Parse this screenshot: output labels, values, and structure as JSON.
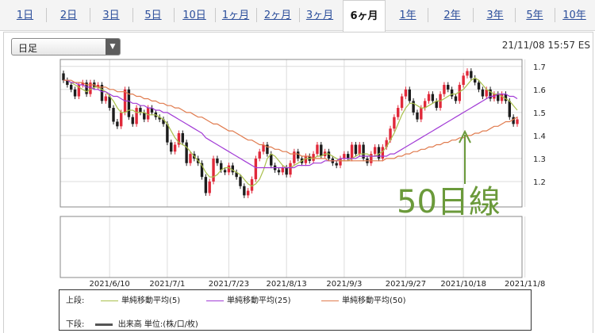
{
  "tabs": [
    {
      "label": "1日"
    },
    {
      "label": "2日"
    },
    {
      "label": "3日"
    },
    {
      "label": "5日"
    },
    {
      "label": "10日"
    },
    {
      "label": "1ヶ月"
    },
    {
      "label": "2ヶ月"
    },
    {
      "label": "3ヶ月"
    },
    {
      "label": "6ヶ月",
      "active": true
    },
    {
      "label": "1年"
    },
    {
      "label": "2年"
    },
    {
      "label": "3年"
    },
    {
      "label": "5年"
    },
    {
      "label": "10年"
    }
  ],
  "selector": {
    "value": "日足",
    "arrow_icon": "triangle-down-icon"
  },
  "timestamp": "21/11/08 15:57 ES",
  "annotation": {
    "text": "50日線",
    "color": "#6b9a3b"
  },
  "legend": {
    "upper_label": "上段:",
    "lower_label": "下段:",
    "items": [
      {
        "label": "単純移動平均(5)",
        "color": "#a9c04c"
      },
      {
        "label": "単純移動平均(25)",
        "color": "#a23cd6"
      },
      {
        "label": "単純移動平均(50)",
        "color": "#e07b4e"
      }
    ],
    "volume_label": "出来高 単位:(株/口/枚)",
    "volume_color": "#555555"
  },
  "chart_data": {
    "type": "candlestick",
    "title": "",
    "xlabel": "",
    "ylabel": "",
    "ylim": [
      1.1,
      1.72
    ],
    "y_ticks": [
      1.2,
      1.3,
      1.4,
      1.5,
      1.6,
      1.7
    ],
    "x_tick_labels": [
      "2021/6/10",
      "2021/7/1",
      "2021/7/23",
      "2021/8/13",
      "2021/9/3",
      "2021/9/27",
      "2021/10/18",
      "2021/11/8"
    ],
    "x_tick_index": [
      12,
      27,
      43,
      58,
      73,
      89,
      104,
      120
    ],
    "up_color": "#e0293a",
    "down_color": "#1c1c1c",
    "grid": true,
    "candles": [
      [
        1.67,
        1.64
      ],
      [
        1.64,
        1.62
      ],
      [
        1.62,
        1.6
      ],
      [
        1.6,
        1.57
      ],
      [
        1.57,
        1.62
      ],
      [
        1.62,
        1.63
      ],
      [
        1.63,
        1.58
      ],
      [
        1.58,
        1.63
      ],
      [
        1.63,
        1.61
      ],
      [
        1.61,
        1.62
      ],
      [
        1.62,
        1.55
      ],
      [
        1.55,
        1.57
      ],
      [
        1.57,
        1.52
      ],
      [
        1.52,
        1.46
      ],
      [
        1.46,
        1.44
      ],
      [
        1.44,
        1.5
      ],
      [
        1.5,
        1.6
      ],
      [
        1.6,
        1.48
      ],
      [
        1.48,
        1.45
      ],
      [
        1.45,
        1.52
      ],
      [
        1.52,
        1.5
      ],
      [
        1.5,
        1.47
      ],
      [
        1.47,
        1.52
      ],
      [
        1.52,
        1.5
      ],
      [
        1.5,
        1.48
      ],
      [
        1.48,
        1.47
      ],
      [
        1.47,
        1.45
      ],
      [
        1.45,
        1.37
      ],
      [
        1.37,
        1.33
      ],
      [
        1.33,
        1.36
      ],
      [
        1.36,
        1.41
      ],
      [
        1.41,
        1.37
      ],
      [
        1.37,
        1.28
      ],
      [
        1.28,
        1.32
      ],
      [
        1.32,
        1.3
      ],
      [
        1.3,
        1.28
      ],
      [
        1.28,
        1.22
      ],
      [
        1.22,
        1.15
      ],
      [
        1.15,
        1.2
      ],
      [
        1.2,
        1.3
      ],
      [
        1.3,
        1.28
      ],
      [
        1.28,
        1.25
      ],
      [
        1.25,
        1.24
      ],
      [
        1.24,
        1.27
      ],
      [
        1.27,
        1.24
      ],
      [
        1.24,
        1.22
      ],
      [
        1.22,
        1.18
      ],
      [
        1.18,
        1.14
      ],
      [
        1.14,
        1.16
      ],
      [
        1.16,
        1.21
      ],
      [
        1.21,
        1.3
      ],
      [
        1.3,
        1.33
      ],
      [
        1.33,
        1.36
      ],
      [
        1.36,
        1.32
      ],
      [
        1.32,
        1.27
      ],
      [
        1.27,
        1.25
      ],
      [
        1.25,
        1.24
      ],
      [
        1.24,
        1.26
      ],
      [
        1.26,
        1.23
      ],
      [
        1.23,
        1.28
      ],
      [
        1.28,
        1.33
      ],
      [
        1.33,
        1.3
      ],
      [
        1.3,
        1.28
      ],
      [
        1.28,
        1.31
      ],
      [
        1.31,
        1.29
      ],
      [
        1.29,
        1.32
      ],
      [
        1.32,
        1.36
      ],
      [
        1.36,
        1.31
      ],
      [
        1.31,
        1.33
      ],
      [
        1.33,
        1.3
      ],
      [
        1.3,
        1.28
      ],
      [
        1.28,
        1.27
      ],
      [
        1.27,
        1.3
      ],
      [
        1.3,
        1.32
      ],
      [
        1.32,
        1.3
      ],
      [
        1.3,
        1.36
      ],
      [
        1.36,
        1.32
      ],
      [
        1.32,
        1.36
      ],
      [
        1.36,
        1.3
      ],
      [
        1.3,
        1.28
      ],
      [
        1.28,
        1.32
      ],
      [
        1.32,
        1.35
      ],
      [
        1.35,
        1.3
      ],
      [
        1.3,
        1.35
      ],
      [
        1.35,
        1.38
      ],
      [
        1.38,
        1.43
      ],
      [
        1.43,
        1.48
      ],
      [
        1.48,
        1.52
      ],
      [
        1.52,
        1.57
      ],
      [
        1.57,
        1.6
      ],
      [
        1.6,
        1.55
      ],
      [
        1.55,
        1.5
      ],
      [
        1.5,
        1.47
      ],
      [
        1.47,
        1.52
      ],
      [
        1.52,
        1.55
      ],
      [
        1.55,
        1.58
      ],
      [
        1.58,
        1.55
      ],
      [
        1.55,
        1.52
      ],
      [
        1.52,
        1.58
      ],
      [
        1.58,
        1.62
      ],
      [
        1.62,
        1.6
      ],
      [
        1.6,
        1.57
      ],
      [
        1.57,
        1.55
      ],
      [
        1.55,
        1.62
      ],
      [
        1.62,
        1.66
      ],
      [
        1.66,
        1.68
      ],
      [
        1.68,
        1.65
      ],
      [
        1.65,
        1.63
      ],
      [
        1.63,
        1.6
      ],
      [
        1.6,
        1.57
      ],
      [
        1.57,
        1.6
      ],
      [
        1.6,
        1.56
      ],
      [
        1.56,
        1.58
      ],
      [
        1.58,
        1.55
      ],
      [
        1.55,
        1.58
      ],
      [
        1.58,
        1.55
      ],
      [
        1.55,
        1.48
      ],
      [
        1.48,
        1.45
      ],
      [
        1.45,
        1.47
      ]
    ],
    "series": [
      {
        "name": "単純移動平均(5)",
        "color": "#a9c04c",
        "values": [
          1.64,
          1.64,
          1.63,
          1.62,
          1.61,
          1.6,
          1.59,
          1.6,
          1.61,
          1.61,
          1.6,
          1.59,
          1.57,
          1.55,
          1.52,
          1.5,
          1.5,
          1.51,
          1.51,
          1.5,
          1.5,
          1.5,
          1.49,
          1.49,
          1.49,
          1.48,
          1.47,
          1.45,
          1.42,
          1.39,
          1.37,
          1.36,
          1.35,
          1.33,
          1.31,
          1.29,
          1.27,
          1.24,
          1.22,
          1.22,
          1.23,
          1.25,
          1.26,
          1.26,
          1.25,
          1.24,
          1.23,
          1.21,
          1.19,
          1.18,
          1.19,
          1.21,
          1.25,
          1.3,
          1.32,
          1.31,
          1.29,
          1.27,
          1.26,
          1.26,
          1.27,
          1.28,
          1.29,
          1.3,
          1.3,
          1.3,
          1.31,
          1.31,
          1.32,
          1.32,
          1.31,
          1.3,
          1.29,
          1.29,
          1.29,
          1.3,
          1.31,
          1.32,
          1.32,
          1.32,
          1.31,
          1.31,
          1.32,
          1.33,
          1.35,
          1.38,
          1.41,
          1.45,
          1.49,
          1.52,
          1.54,
          1.54,
          1.53,
          1.52,
          1.52,
          1.53,
          1.54,
          1.55,
          1.55,
          1.56,
          1.57,
          1.58,
          1.58,
          1.59,
          1.6,
          1.62,
          1.64,
          1.65,
          1.64,
          1.62,
          1.6,
          1.59,
          1.58,
          1.58,
          1.57,
          1.56,
          1.55,
          1.53,
          1.51
        ]
      },
      {
        "name": "単純移動平均(25)",
        "color": "#a23cd6",
        "values": [
          1.64,
          1.64,
          1.63,
          1.63,
          1.62,
          1.62,
          1.61,
          1.61,
          1.6,
          1.6,
          1.59,
          1.59,
          1.58,
          1.57,
          1.57,
          1.56,
          1.55,
          1.55,
          1.54,
          1.54,
          1.53,
          1.53,
          1.52,
          1.52,
          1.51,
          1.51,
          1.5,
          1.5,
          1.49,
          1.48,
          1.47,
          1.46,
          1.45,
          1.44,
          1.43,
          1.42,
          1.41,
          1.39,
          1.38,
          1.37,
          1.36,
          1.35,
          1.34,
          1.33,
          1.32,
          1.31,
          1.3,
          1.29,
          1.28,
          1.27,
          1.26,
          1.26,
          1.26,
          1.26,
          1.26,
          1.26,
          1.26,
          1.26,
          1.26,
          1.26,
          1.26,
          1.27,
          1.27,
          1.27,
          1.27,
          1.28,
          1.28,
          1.28,
          1.29,
          1.29,
          1.29,
          1.29,
          1.3,
          1.3,
          1.3,
          1.3,
          1.3,
          1.31,
          1.31,
          1.31,
          1.31,
          1.31,
          1.31,
          1.31,
          1.31,
          1.32,
          1.32,
          1.33,
          1.34,
          1.35,
          1.36,
          1.37,
          1.38,
          1.39,
          1.4,
          1.41,
          1.42,
          1.43,
          1.44,
          1.45,
          1.46,
          1.47,
          1.48,
          1.49,
          1.5,
          1.51,
          1.52,
          1.53,
          1.54,
          1.55,
          1.56,
          1.57,
          1.57,
          1.58,
          1.58,
          1.58,
          1.57,
          1.57,
          1.56
        ]
      },
      {
        "name": "単純移動平均(50)",
        "color": "#e07b4e",
        "values": [
          1.64,
          1.64,
          1.64,
          1.63,
          1.63,
          1.63,
          1.62,
          1.62,
          1.62,
          1.61,
          1.61,
          1.61,
          1.6,
          1.6,
          1.59,
          1.59,
          1.59,
          1.58,
          1.58,
          1.57,
          1.57,
          1.56,
          1.56,
          1.55,
          1.55,
          1.54,
          1.54,
          1.53,
          1.53,
          1.52,
          1.52,
          1.51,
          1.5,
          1.5,
          1.49,
          1.48,
          1.48,
          1.47,
          1.46,
          1.45,
          1.45,
          1.44,
          1.43,
          1.42,
          1.42,
          1.41,
          1.4,
          1.39,
          1.38,
          1.38,
          1.37,
          1.36,
          1.36,
          1.35,
          1.35,
          1.34,
          1.34,
          1.33,
          1.33,
          1.32,
          1.32,
          1.32,
          1.31,
          1.31,
          1.31,
          1.3,
          1.3,
          1.3,
          1.3,
          1.29,
          1.29,
          1.29,
          1.29,
          1.29,
          1.29,
          1.29,
          1.29,
          1.29,
          1.29,
          1.29,
          1.29,
          1.29,
          1.29,
          1.29,
          1.3,
          1.3,
          1.3,
          1.31,
          1.31,
          1.32,
          1.32,
          1.33,
          1.33,
          1.34,
          1.34,
          1.35,
          1.35,
          1.36,
          1.36,
          1.37,
          1.37,
          1.38,
          1.38,
          1.39,
          1.39,
          1.4,
          1.4,
          1.41,
          1.41,
          1.42,
          1.42,
          1.43,
          1.44,
          1.44,
          1.45,
          1.46,
          1.46,
          1.47,
          1.48
        ]
      }
    ]
  }
}
